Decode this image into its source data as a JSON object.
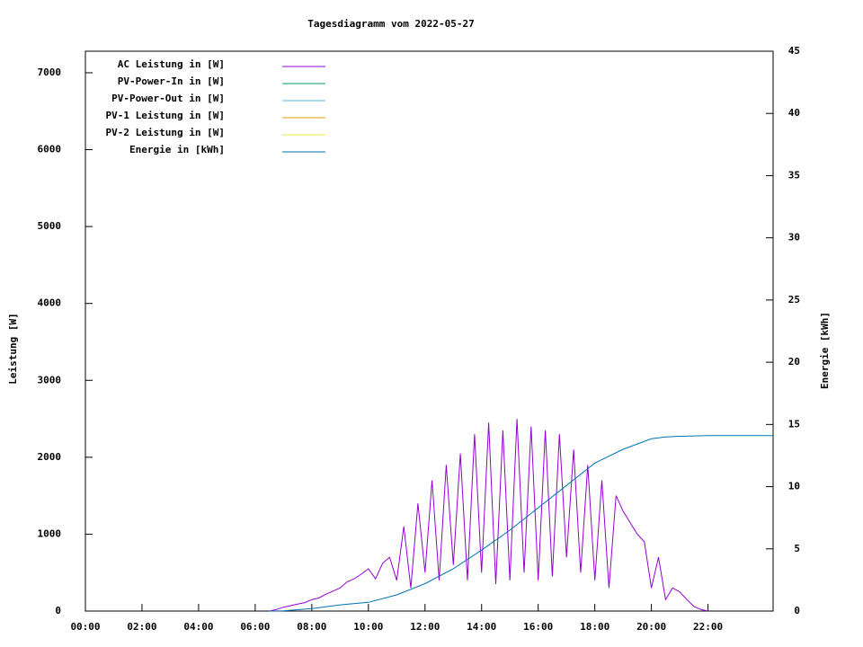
{
  "chart_data": {
    "type": "line",
    "title": "Tagesdiagramm vom 2022-05-27",
    "y_label": "Leistung [W]",
    "y2_label": "Energie [kWh]",
    "xlim": [
      0,
      24.3
    ],
    "xticks": [
      {
        "value": 0,
        "label": "00:00"
      },
      {
        "value": 2,
        "label": "02:00"
      },
      {
        "value": 4,
        "label": "04:00"
      },
      {
        "value": 6,
        "label": "06:00"
      },
      {
        "value": 8,
        "label": "08:00"
      },
      {
        "value": 10,
        "label": "10:00"
      },
      {
        "value": 12,
        "label": "12:00"
      },
      {
        "value": 14,
        "label": "14:00"
      },
      {
        "value": 16,
        "label": "16:00"
      },
      {
        "value": 18,
        "label": "18:00"
      },
      {
        "value": 20,
        "label": "20:00"
      },
      {
        "value": 22,
        "label": "22:00"
      }
    ],
    "ylim": [
      0,
      7280
    ],
    "yticks": [
      0,
      1000,
      2000,
      3000,
      4000,
      5000,
      6000,
      7000
    ],
    "y2lim": [
      0,
      45
    ],
    "y2ticks": [
      0,
      5,
      10,
      15,
      20,
      25,
      30,
      35,
      40,
      45
    ],
    "legend": "top-left",
    "series": [
      {
        "name": "AC Leistung in [W]",
        "color": "#9400d3",
        "x": [
          6.5,
          6.75,
          7,
          7.25,
          7.5,
          7.75,
          8,
          8.25,
          8.5,
          8.75,
          9,
          9.25,
          9.5,
          9.75,
          10,
          10.25,
          10.5,
          10.75,
          11,
          11.25,
          11.5,
          11.75,
          12,
          12.25,
          12.5,
          12.75,
          13,
          13.25,
          13.5,
          13.75,
          14,
          14.25,
          14.5,
          14.75,
          15,
          15.25,
          15.5,
          15.75,
          16,
          16.25,
          16.5,
          16.75,
          17,
          17.25,
          17.5,
          17.75,
          18,
          18.25,
          18.5,
          18.75,
          19,
          19.25,
          19.5,
          19.75,
          20,
          20.25,
          20.5,
          20.75,
          21,
          21.25,
          21.5,
          21.75,
          22
        ],
        "values": [
          0,
          20,
          50,
          70,
          90,
          110,
          150,
          170,
          220,
          260,
          300,
          380,
          420,
          480,
          550,
          420,
          620,
          700,
          400,
          1100,
          300,
          1400,
          500,
          1700,
          400,
          1900,
          600,
          2050,
          400,
          2300,
          500,
          2450,
          350,
          2350,
          400,
          2500,
          500,
          2400,
          400,
          2350,
          450,
          2300,
          700,
          2100,
          500,
          1900,
          400,
          1700,
          300,
          1500,
          1300,
          1150,
          1000,
          900,
          300,
          700,
          150,
          300,
          250,
          150,
          60,
          20,
          0
        ]
      },
      {
        "name": "PV-Power-In in [W]",
        "color": "#009e73",
        "x": [],
        "values": []
      },
      {
        "name": "PV-Power-Out in [W]",
        "color": "#56b4e9",
        "x": [],
        "values": []
      },
      {
        "name": "PV-1 Leistung in [W]",
        "color": "#e69f00",
        "x": [],
        "values": []
      },
      {
        "name": "PV-2 Leistung in [W]",
        "color": "#f0e442",
        "x": [],
        "values": []
      },
      {
        "name": "Energie in [kWh]",
        "color": "#0072b2",
        "axis": "y2",
        "x": [
          6.5,
          7,
          8,
          9,
          10,
          11,
          12,
          13,
          14,
          15,
          16,
          17,
          18,
          19,
          20,
          20.5,
          21,
          22,
          24.3
        ],
        "values": [
          0,
          0.02,
          0.2,
          0.5,
          0.7,
          1.3,
          2.2,
          3.4,
          4.9,
          6.5,
          8.3,
          10.1,
          11.9,
          13.0,
          13.85,
          14.0,
          14.05,
          14.1,
          14.1
        ]
      }
    ]
  }
}
